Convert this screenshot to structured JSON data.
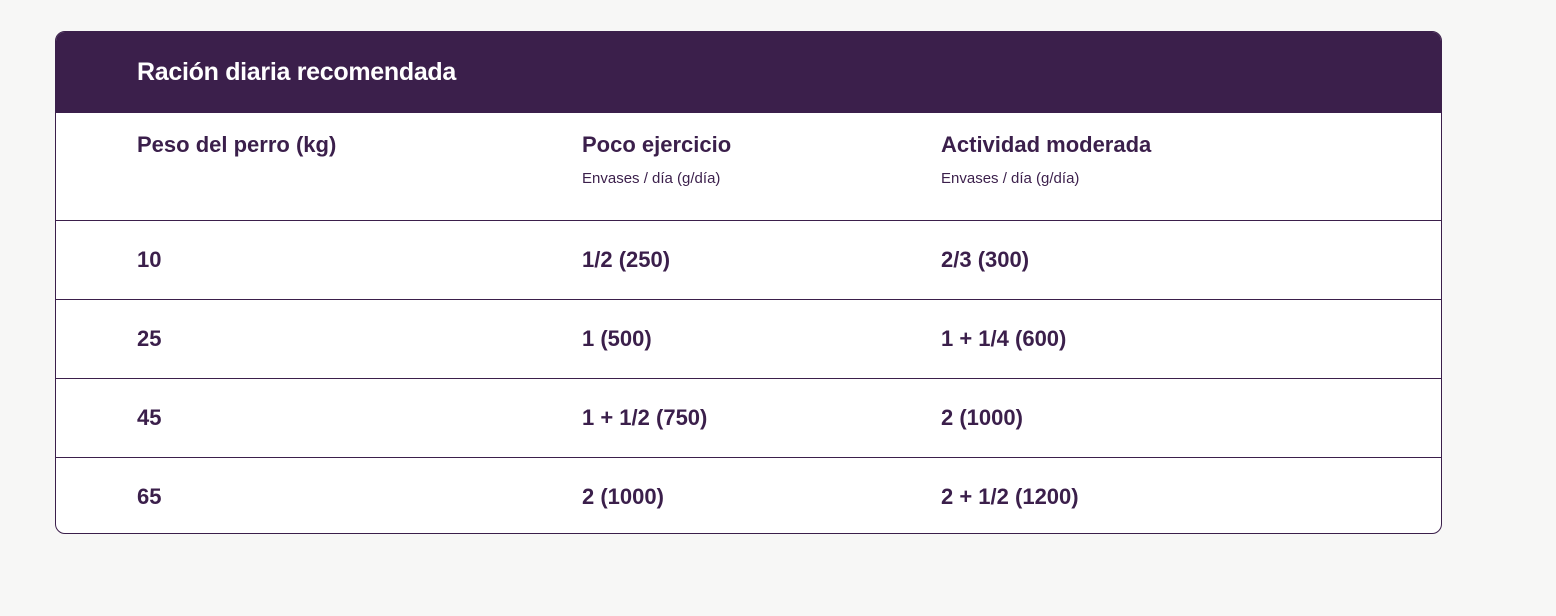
{
  "table": {
    "title": "Ración diaria recomendada",
    "columns": [
      {
        "label": "Peso del perro (kg)",
        "sublabel": ""
      },
      {
        "label": "Poco ejercicio",
        "sublabel": "Envases / día (g/día)"
      },
      {
        "label": "Actividad moderada",
        "sublabel": "Envases / día (g/día)"
      }
    ],
    "rows": [
      [
        "10",
        "1/2 (250)",
        "2/3 (300)"
      ],
      [
        "25",
        "1 (500)",
        "1 + 1/4 (600)"
      ],
      [
        "45",
        "1 + 1/2 (750)",
        "2 (1000)"
      ],
      [
        "65",
        "2 (1000)",
        "2 + 1/2 (1200)"
      ]
    ]
  },
  "colors": {
    "accent": "#3b1f4b",
    "background": "#f7f7f6"
  }
}
